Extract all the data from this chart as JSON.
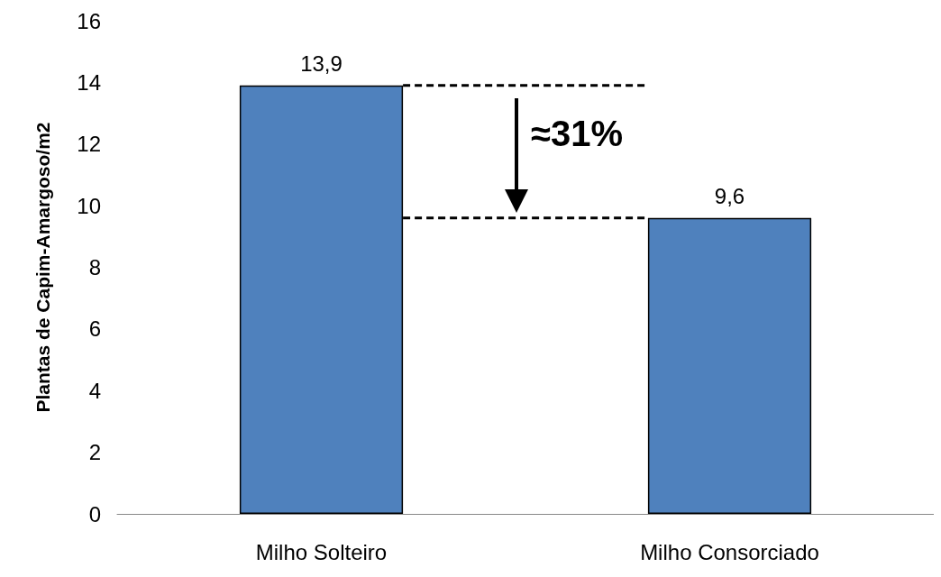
{
  "chart_data": {
    "type": "bar",
    "ylabel": "Plantas de Capim-Amargoso/m2",
    "categories": [
      "Milho Solteiro",
      "Milho Consorciado"
    ],
    "values": [
      13.9,
      9.6
    ],
    "value_labels": [
      "13,9",
      "9,6"
    ],
    "color": "#4f81bd",
    "ylim": [
      0,
      16
    ],
    "yticks": [
      0,
      2,
      4,
      6,
      8,
      10,
      12,
      14,
      16
    ],
    "grid": false,
    "ref_lines": [
      {
        "axis": "y",
        "value": 13.9,
        "color": "#000000",
        "line_style": "dashed"
      },
      {
        "axis": "y",
        "value": 9.6,
        "color": "#000000",
        "line_style": "dashed"
      }
    ],
    "annotations": [
      "≈31%"
    ]
  }
}
